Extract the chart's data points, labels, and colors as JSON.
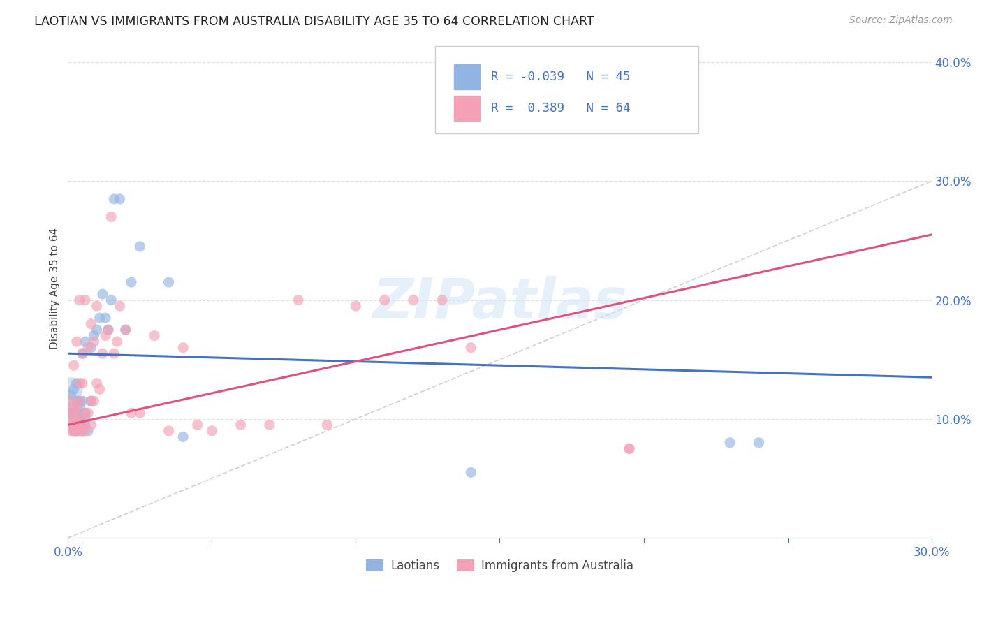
{
  "title": "LAOTIAN VS IMMIGRANTS FROM AUSTRALIA DISABILITY AGE 35 TO 64 CORRELATION CHART",
  "source": "Source: ZipAtlas.com",
  "ylabel": "Disability Age 35 to 64",
  "xlim": [
    0.0,
    0.3
  ],
  "ylim": [
    0.0,
    0.42
  ],
  "xtick_vals": [
    0.0,
    0.05,
    0.1,
    0.15,
    0.2,
    0.25,
    0.3
  ],
  "xtick_labels": [
    "0.0%",
    "",
    "",
    "",
    "",
    "",
    "30.0%"
  ],
  "ytick_vals": [
    0.0,
    0.1,
    0.2,
    0.3,
    0.4
  ],
  "ytick_labels": [
    "",
    "10.0%",
    "20.0%",
    "30.0%",
    "40.0%"
  ],
  "legend_labels": [
    "Laotians",
    "Immigrants from Australia"
  ],
  "R_laotian": -0.039,
  "N_laotian": 45,
  "R_australia": 0.389,
  "N_australia": 64,
  "color_laotian": "#92b4e3",
  "color_australia": "#f4a0b5",
  "trend_color_laotian": "#4472c4",
  "trend_color_australia": "#e05080",
  "diagonal_color": "#cccccc",
  "background_color": "#ffffff",
  "grid_color": "#e0e0e0",
  "tick_color": "#4472c4",
  "laotian_x": [
    0.001,
    0.001,
    0.001,
    0.002,
    0.002,
    0.002,
    0.002,
    0.003,
    0.003,
    0.003,
    0.003,
    0.003,
    0.004,
    0.004,
    0.004,
    0.004,
    0.005,
    0.005,
    0.005,
    0.005,
    0.005,
    0.006,
    0.006,
    0.006,
    0.006,
    0.007,
    0.008,
    0.008,
    0.009,
    0.01,
    0.011,
    0.012,
    0.013,
    0.014,
    0.015,
    0.016,
    0.018,
    0.02,
    0.022,
    0.025,
    0.035,
    0.04,
    0.14,
    0.23,
    0.24
  ],
  "laotian_y": [
    0.1,
    0.11,
    0.12,
    0.09,
    0.095,
    0.105,
    0.125,
    0.09,
    0.095,
    0.105,
    0.115,
    0.13,
    0.095,
    0.1,
    0.11,
    0.115,
    0.09,
    0.095,
    0.1,
    0.115,
    0.155,
    0.095,
    0.1,
    0.105,
    0.165,
    0.09,
    0.115,
    0.16,
    0.17,
    0.175,
    0.185,
    0.205,
    0.185,
    0.175,
    0.2,
    0.285,
    0.285,
    0.175,
    0.215,
    0.245,
    0.215,
    0.085,
    0.055,
    0.08,
    0.08
  ],
  "australia_x": [
    0.001,
    0.001,
    0.001,
    0.001,
    0.002,
    0.002,
    0.002,
    0.002,
    0.002,
    0.002,
    0.003,
    0.003,
    0.003,
    0.003,
    0.003,
    0.004,
    0.004,
    0.004,
    0.004,
    0.004,
    0.005,
    0.005,
    0.005,
    0.005,
    0.005,
    0.006,
    0.006,
    0.006,
    0.007,
    0.007,
    0.008,
    0.008,
    0.008,
    0.009,
    0.009,
    0.01,
    0.01,
    0.011,
    0.012,
    0.013,
    0.014,
    0.015,
    0.016,
    0.017,
    0.018,
    0.02,
    0.022,
    0.025,
    0.03,
    0.035,
    0.04,
    0.045,
    0.05,
    0.06,
    0.07,
    0.08,
    0.09,
    0.1,
    0.11,
    0.12,
    0.13,
    0.14,
    0.195,
    0.195
  ],
  "australia_y": [
    0.09,
    0.095,
    0.105,
    0.115,
    0.09,
    0.095,
    0.1,
    0.105,
    0.11,
    0.145,
    0.09,
    0.095,
    0.1,
    0.11,
    0.165,
    0.09,
    0.095,
    0.115,
    0.13,
    0.2,
    0.09,
    0.095,
    0.1,
    0.13,
    0.155,
    0.09,
    0.105,
    0.2,
    0.105,
    0.16,
    0.095,
    0.115,
    0.18,
    0.115,
    0.165,
    0.13,
    0.195,
    0.125,
    0.155,
    0.17,
    0.175,
    0.27,
    0.155,
    0.165,
    0.195,
    0.175,
    0.105,
    0.105,
    0.17,
    0.09,
    0.16,
    0.095,
    0.09,
    0.095,
    0.095,
    0.2,
    0.095,
    0.195,
    0.2,
    0.2,
    0.2,
    0.16,
    0.075,
    0.075
  ],
  "trend_laotian_x0": 0.0,
  "trend_laotian_y0": 0.155,
  "trend_laotian_x1": 0.3,
  "trend_laotian_y1": 0.135,
  "trend_australia_x0": 0.0,
  "trend_australia_y0": 0.095,
  "trend_australia_x1": 0.3,
  "trend_australia_y1": 0.255
}
